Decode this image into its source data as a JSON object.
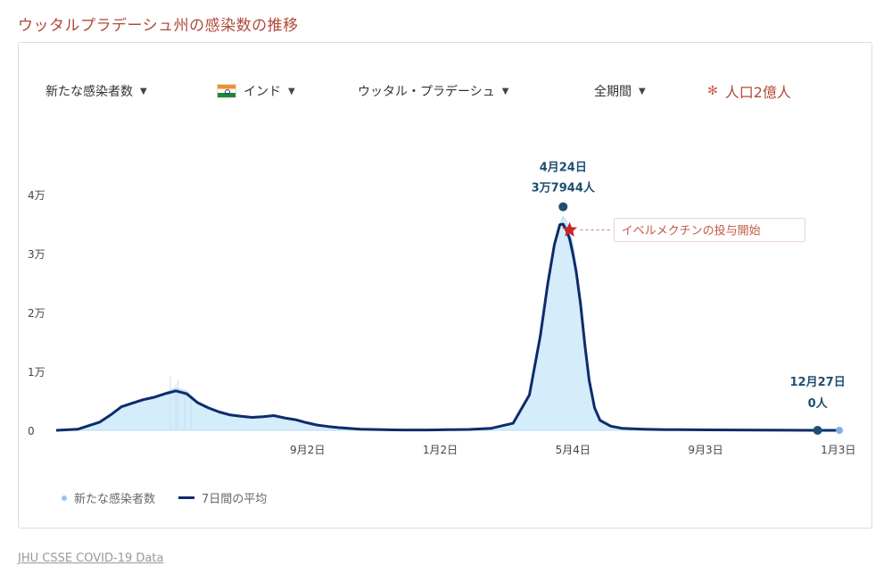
{
  "page_title": "ウッタルプラデーシュ州の感染数の推移",
  "toolbar": {
    "metric": "新たな感染者数",
    "country": "インド",
    "region": "ウッタル・プラデーシュ",
    "period": "全期間",
    "population": "人口2億人",
    "population_icon": "asterisk-icon",
    "country_icon": "india-flag-icon"
  },
  "source": "JHU CSSE COVID-19 Data",
  "chart_data": {
    "type": "area",
    "y_ticks": [
      {
        "value": 0,
        "label": "0"
      },
      {
        "value": 10000,
        "label": "1万"
      },
      {
        "value": 20000,
        "label": "2万"
      },
      {
        "value": 30000,
        "label": "3万"
      },
      {
        "value": 40000,
        "label": "4万"
      }
    ],
    "x_ticks": [
      {
        "x": 231,
        "label": "9月2日"
      },
      {
        "x": 353,
        "label": "1月2日"
      },
      {
        "x": 475,
        "label": "5月4日"
      },
      {
        "x": 597,
        "label": "9月3日"
      },
      {
        "x": 719,
        "label": "1月3日"
      }
    ],
    "ylim": [
      0,
      40000
    ],
    "grid": false,
    "legend_position": "bottom-left",
    "series": [
      {
        "name": "新たな感染者数",
        "style": "area",
        "color": "#d5ecfa",
        "x": [
          0,
          20,
          40,
          50,
          60,
          70,
          80,
          90,
          100,
          110,
          120,
          130,
          140,
          150,
          160,
          170,
          180,
          190,
          200,
          210,
          220,
          230,
          240,
          250,
          260,
          270,
          280,
          290,
          300,
          310,
          320,
          330,
          340,
          350,
          360,
          380,
          400,
          420,
          435,
          445,
          452,
          458,
          463,
          466,
          469,
          472,
          475,
          478,
          482,
          486,
          490,
          495,
          500,
          510,
          520,
          540,
          560,
          600,
          650,
          700,
          720
        ],
        "y": [
          0,
          200,
          1400,
          2600,
          4100,
          4800,
          5400,
          5800,
          6400,
          7200,
          6600,
          4900,
          3900,
          3200,
          2700,
          2400,
          2200,
          2300,
          2600,
          2100,
          1800,
          1300,
          900,
          650,
          450,
          320,
          200,
          150,
          100,
          80,
          60,
          60,
          60,
          80,
          100,
          150,
          350,
          1200,
          6000,
          16000,
          25000,
          31500,
          35000,
          36300,
          35500,
          34000,
          31500,
          28000,
          22000,
          15000,
          9000,
          4000,
          1800,
          700,
          350,
          200,
          120,
          80,
          50,
          0,
          0
        ]
      },
      {
        "name": "7日間の平均",
        "style": "line",
        "color": "#0d2c6b",
        "x": [
          0,
          20,
          40,
          50,
          60,
          70,
          80,
          90,
          100,
          110,
          120,
          130,
          140,
          150,
          160,
          170,
          180,
          190,
          200,
          210,
          220,
          230,
          240,
          250,
          260,
          270,
          280,
          290,
          300,
          310,
          320,
          330,
          340,
          350,
          360,
          380,
          400,
          420,
          435,
          445,
          452,
          458,
          463,
          466,
          469,
          472,
          475,
          478,
          482,
          486,
          490,
          495,
          500,
          510,
          520,
          540,
          560,
          600,
          650,
          700,
          720
        ],
        "y": [
          0,
          200,
          1400,
          2600,
          4000,
          4600,
          5200,
          5600,
          6200,
          6700,
          6200,
          4700,
          3800,
          3100,
          2600,
          2400,
          2200,
          2300,
          2500,
          2100,
          1800,
          1300,
          900,
          650,
          450,
          320,
          200,
          150,
          100,
          80,
          60,
          60,
          60,
          80,
          100,
          150,
          350,
          1200,
          6000,
          16000,
          25000,
          31500,
          34900,
          35000,
          34000,
          32500,
          30000,
          27000,
          21500,
          14500,
          8500,
          3800,
          1700,
          700,
          350,
          200,
          120,
          80,
          50,
          0,
          0
        ]
      }
    ],
    "annotations": [
      {
        "kind": "peak",
        "x": 466,
        "y": 37944,
        "date": "4月24日",
        "value": "3万7944人"
      },
      {
        "kind": "star",
        "x": 472,
        "y": 34000,
        "text": "イベルメクチンの投与開始"
      },
      {
        "kind": "latest",
        "x": 700,
        "y": 0,
        "date": "12月27日",
        "value": "0人"
      }
    ]
  }
}
